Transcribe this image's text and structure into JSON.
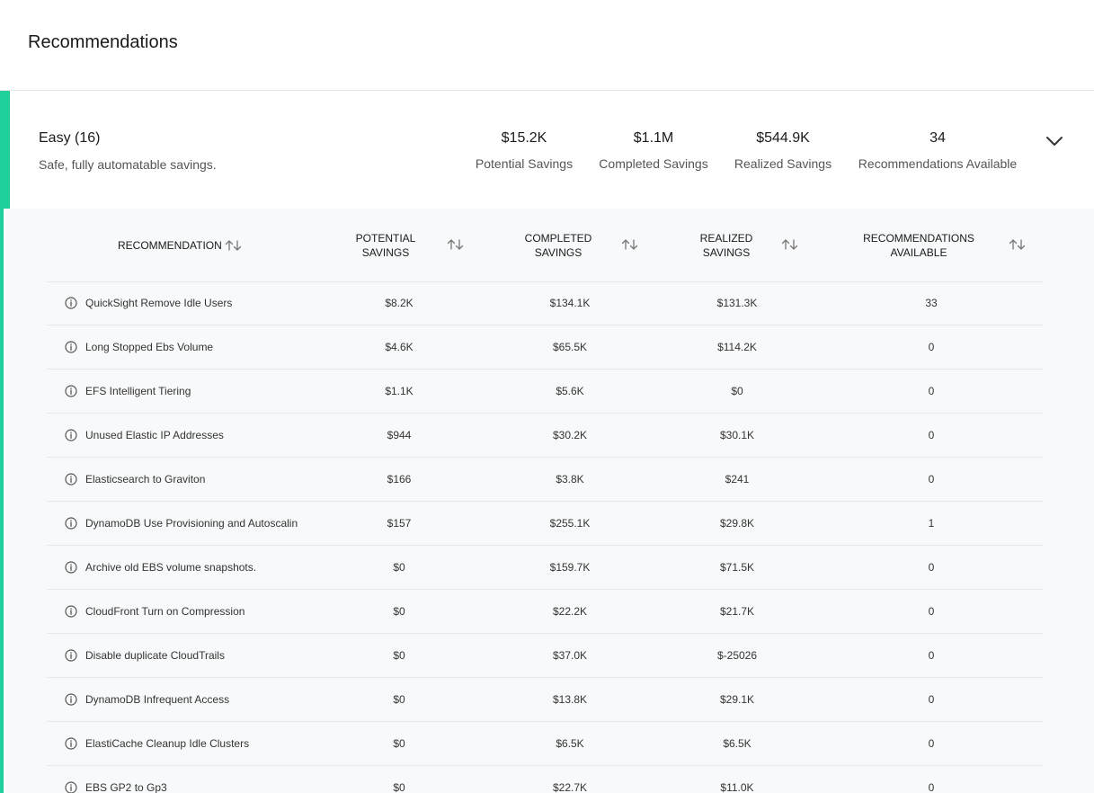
{
  "page": {
    "title": "Recommendations"
  },
  "group": {
    "name": "Easy (16)",
    "description": "Safe, fully automatable savings.",
    "stats": [
      {
        "value": "$15.2K",
        "label": "Potential Savings"
      },
      {
        "value": "$1.1M",
        "label": "Completed Savings"
      },
      {
        "value": "$544.9K",
        "label": "Realized Savings"
      },
      {
        "value": "34",
        "label": "Recommendations Available"
      }
    ],
    "accent_color": "#1fcf9c",
    "expand_icon": "chevron-down-icon"
  },
  "table": {
    "columns": [
      {
        "label": "RECOMMENDATION"
      },
      {
        "label": "POTENTIAL SAVINGS"
      },
      {
        "label": "COMPLETED SAVINGS"
      },
      {
        "label": "REALIZED SAVINGS"
      },
      {
        "label": "RECOMMENDATIONS AVAILABLE"
      }
    ],
    "sort_icon": "sort-arrows-icon",
    "row_icon": "info-icon",
    "rows": [
      {
        "name": "QuickSight Remove Idle Users",
        "potential": "$8.2K",
        "completed": "$134.1K",
        "realized": "$131.3K",
        "available": "33"
      },
      {
        "name": "Long Stopped Ebs Volume",
        "potential": "$4.6K",
        "completed": "$65.5K",
        "realized": "$114.2K",
        "available": "0"
      },
      {
        "name": "EFS Intelligent Tiering",
        "potential": "$1.1K",
        "completed": "$5.6K",
        "realized": "$0",
        "available": "0"
      },
      {
        "name": "Unused Elastic IP Addresses",
        "potential": "$944",
        "completed": "$30.2K",
        "realized": "$30.1K",
        "available": "0"
      },
      {
        "name": "Elasticsearch to Graviton",
        "potential": "$166",
        "completed": "$3.8K",
        "realized": "$241",
        "available": "0"
      },
      {
        "name": "DynamoDB Use Provisioning and Autoscalin",
        "potential": "$157",
        "completed": "$255.1K",
        "realized": "$29.8K",
        "available": "1"
      },
      {
        "name": "Archive old EBS volume snapshots.",
        "potential": "$0",
        "completed": "$159.7K",
        "realized": "$71.5K",
        "available": "0"
      },
      {
        "name": "CloudFront Turn on Compression",
        "potential": "$0",
        "completed": "$22.2K",
        "realized": "$21.7K",
        "available": "0"
      },
      {
        "name": "Disable duplicate CloudTrails",
        "potential": "$0",
        "completed": "$37.0K",
        "realized": "$-25026",
        "available": "0"
      },
      {
        "name": "DynamoDB Infrequent Access",
        "potential": "$0",
        "completed": "$13.8K",
        "realized": "$29.1K",
        "available": "0"
      },
      {
        "name": "ElastiCache Cleanup Idle Clusters",
        "potential": "$0",
        "completed": "$6.5K",
        "realized": "$6.5K",
        "available": "0"
      },
      {
        "name": "EBS GP2 to Gp3",
        "potential": "$0",
        "completed": "$22.7K",
        "realized": "$11.0K",
        "available": "0"
      }
    ]
  }
}
